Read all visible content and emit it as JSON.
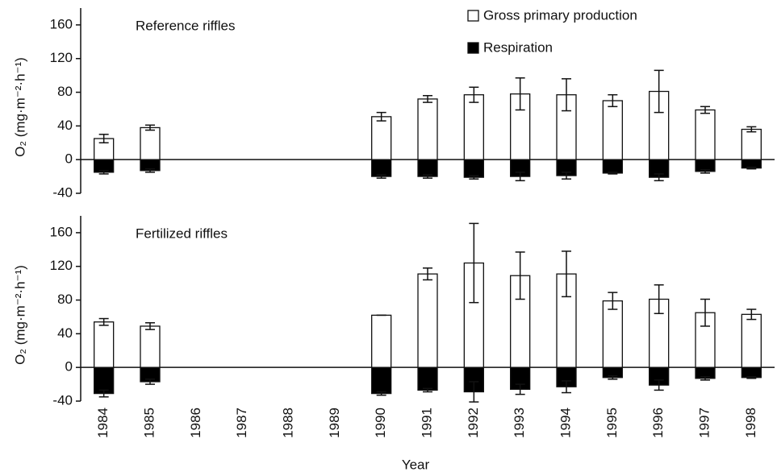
{
  "chart_data": [
    {
      "type": "bar",
      "title": "Reference riffles",
      "ylabel": "O₂ (mg·m⁻²·h⁻¹)",
      "ylim": [
        -40,
        180
      ],
      "yticks": [
        -40,
        0,
        40,
        80,
        120,
        160
      ],
      "legend": "top-right",
      "series": [
        {
          "name": "Gross primary production",
          "color": "#ffffff",
          "values": [
            25,
            38,
            null,
            null,
            null,
            null,
            51,
            72,
            77,
            78,
            77,
            70,
            81,
            59,
            36
          ],
          "errors": [
            5,
            3,
            null,
            null,
            null,
            null,
            5,
            4,
            9,
            19,
            19,
            7,
            25,
            4,
            3
          ]
        },
        {
          "name": "Respiration",
          "color": "#000000",
          "values": [
            -15,
            -13,
            null,
            null,
            null,
            null,
            -20,
            -20,
            -21,
            -20,
            -19,
            -16,
            -21,
            -14,
            -10
          ],
          "errors": [
            2,
            2,
            null,
            null,
            null,
            null,
            2,
            2,
            2,
            5,
            4,
            1,
            4,
            2,
            1
          ]
        }
      ]
    },
    {
      "type": "bar",
      "title": "Fertilized riffles",
      "ylabel": "O₂ (mg·m⁻²·h⁻¹)",
      "xlabel": "Year",
      "categories": [
        "1984",
        "1985",
        "1986",
        "1987",
        "1988",
        "1989",
        "1990",
        "1991",
        "1992",
        "1993",
        "1994",
        "1995",
        "1996",
        "1997",
        "1998"
      ],
      "ylim": [
        -40,
        180
      ],
      "yticks": [
        -40,
        0,
        40,
        80,
        120,
        160
      ],
      "series": [
        {
          "color": "#ffffff",
          "values": [
            54,
            49,
            null,
            null,
            null,
            null,
            62,
            111,
            124,
            109,
            111,
            79,
            81,
            65,
            63
          ],
          "errors": [
            4,
            4,
            null,
            null,
            null,
            null,
            0,
            7,
            47,
            28,
            27,
            10,
            17,
            16,
            6
          ]
        },
        {
          "color": "#000000",
          "values": [
            -31,
            -17,
            null,
            null,
            null,
            null,
            -31,
            -27,
            -29,
            -26,
            -23,
            -12,
            -21,
            -13,
            -12
          ],
          "errors": [
            4,
            3,
            null,
            null,
            null,
            null,
            2,
            2,
            12,
            6,
            7,
            2,
            6,
            2,
            1
          ]
        }
      ]
    }
  ]
}
